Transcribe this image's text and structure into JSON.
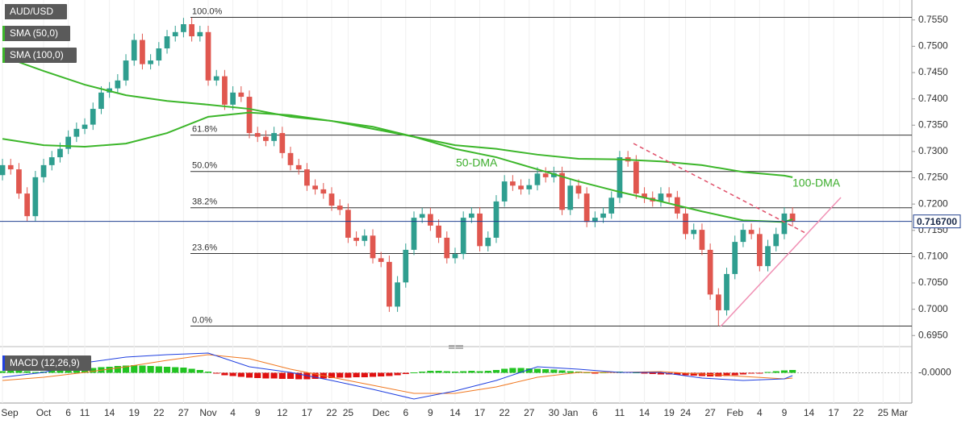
{
  "chart_data": {
    "type": "candlestick",
    "title": "AUD/USD",
    "up_color": "#2f9e8f",
    "down_color": "#e0574f",
    "grid": true,
    "categories": [
      "Sep",
      null,
      null,
      null,
      null,
      "Oct",
      null,
      null,
      "6",
      null,
      "11",
      null,
      null,
      "14",
      null,
      null,
      "19",
      null,
      null,
      "22",
      null,
      null,
      "27",
      null,
      null,
      "Nov",
      null,
      null,
      "4",
      null,
      null,
      "9",
      null,
      null,
      "12",
      null,
      null,
      "17",
      null,
      null,
      "22",
      null,
      "25",
      null,
      null,
      null,
      "Dec",
      null,
      null,
      "6",
      null,
      null,
      "9",
      null,
      null,
      "14",
      null,
      null,
      "17",
      null,
      null,
      "22",
      null,
      null,
      "27",
      null,
      null,
      "30",
      null,
      "Jan",
      null,
      null,
      "6",
      null,
      null,
      "11",
      null,
      null,
      "14",
      null,
      null,
      "19",
      null,
      "24",
      null,
      null,
      "27",
      null,
      null,
      "Feb",
      null,
      null,
      "4",
      null,
      null,
      "9",
      null,
      null,
      "14",
      null,
      null,
      "17",
      null,
      null,
      "22",
      null,
      null,
      "25",
      null,
      "Mar"
    ],
    "open": [
      0.7255,
      0.7274,
      0.7266,
      0.722,
      0.7177,
      0.7251,
      0.7274,
      0.7289,
      0.7305,
      0.7328,
      0.7343,
      0.7351,
      0.7381,
      0.7412,
      0.742,
      0.7435,
      0.7473,
      0.7512,
      0.7466,
      0.7473,
      0.7496,
      0.7519,
      0.7527,
      0.7542,
      0.7519,
      0.7527,
      0.7435,
      0.7443,
      0.7389,
      0.7412,
      0.7404,
      0.7335,
      0.7328,
      0.732,
      0.7335,
      0.7297,
      0.7274,
      0.7266,
      0.7235,
      0.7228,
      0.722,
      0.7197,
      0.7189,
      0.7136,
      0.713,
      0.714,
      0.7097,
      0.709,
      0.7005,
      0.7051,
      0.7113,
      0.7174,
      0.7181,
      0.7159,
      0.7136,
      0.7097,
      0.7105,
      0.7174,
      0.7182,
      0.712,
      0.7136,
      0.7205,
      0.7243,
      0.7235,
      0.7228,
      0.7236,
      0.7258,
      0.7251,
      0.7259,
      0.7189,
      0.7235,
      0.722,
      0.7166,
      0.7174,
      0.7182,
      0.7212,
      0.7289,
      0.7281,
      0.722,
      0.7212,
      0.7205,
      0.722,
      0.7213,
      0.7182,
      0.7143,
      0.7151,
      0.7113,
      0.7028,
      0.6998,
      0.7067,
      0.7128,
      0.7151,
      0.7143,
      0.7082,
      0.712,
      0.7143,
      0.7182,
      null,
      null,
      null,
      null,
      null,
      null,
      null,
      null,
      null,
      null,
      null,
      null,
      null
    ],
    "high": [
      0.7286,
      0.7286,
      0.7278,
      0.7232,
      0.7263,
      0.7286,
      0.7301,
      0.7317,
      0.734,
      0.7355,
      0.7363,
      0.7393,
      0.7424,
      0.7432,
      0.7447,
      0.7485,
      0.7524,
      0.7524,
      0.7485,
      0.7508,
      0.7531,
      0.7539,
      0.7554,
      0.7554,
      0.7539,
      0.7539,
      0.7455,
      0.7455,
      0.7424,
      0.7424,
      0.7416,
      0.7347,
      0.734,
      0.7347,
      0.7347,
      0.7309,
      0.7286,
      0.7278,
      0.7247,
      0.724,
      0.7232,
      0.7209,
      0.7201,
      0.7148,
      0.7152,
      0.7152,
      0.7109,
      0.7102,
      0.7063,
      0.7125,
      0.7186,
      0.7193,
      0.7193,
      0.7171,
      0.7148,
      0.7117,
      0.7186,
      0.7194,
      0.7194,
      0.7148,
      0.7217,
      0.7255,
      0.7255,
      0.7247,
      0.7248,
      0.727,
      0.727,
      0.7271,
      0.7271,
      0.7247,
      0.7247,
      0.7232,
      0.7186,
      0.7194,
      0.7224,
      0.7301,
      0.7301,
      0.7293,
      0.7232,
      0.7224,
      0.7232,
      0.7232,
      0.7225,
      0.7194,
      0.7163,
      0.7163,
      0.7125,
      0.704,
      0.7079,
      0.714,
      0.7163,
      0.7163,
      0.7155,
      0.7132,
      0.7155,
      0.7194,
      0.7194,
      null,
      null,
      null,
      null,
      null,
      null,
      null,
      null,
      null,
      null,
      null,
      null,
      null
    ],
    "low": [
      0.7245,
      0.7256,
      0.721,
      0.7167,
      0.7167,
      0.7241,
      0.7264,
      0.7279,
      0.7295,
      0.7318,
      0.7333,
      0.7341,
      0.7371,
      0.7402,
      0.741,
      0.7425,
      0.7463,
      0.7456,
      0.7456,
      0.7463,
      0.7486,
      0.7509,
      0.7517,
      0.7509,
      0.7509,
      0.7425,
      0.7425,
      0.7379,
      0.7379,
      0.7394,
      0.7325,
      0.7318,
      0.731,
      0.731,
      0.7287,
      0.7264,
      0.7256,
      0.7225,
      0.7218,
      0.721,
      0.7187,
      0.7179,
      0.7126,
      0.712,
      0.712,
      0.7087,
      0.708,
      0.6995,
      0.6995,
      0.7041,
      0.7103,
      0.7164,
      0.7149,
      0.7126,
      0.7087,
      0.7087,
      0.7095,
      0.7164,
      0.711,
      0.711,
      0.7126,
      0.7195,
      0.7225,
      0.7218,
      0.7218,
      0.7226,
      0.7241,
      0.7241,
      0.7179,
      0.7179,
      0.721,
      0.7156,
      0.7156,
      0.7164,
      0.7172,
      0.7202,
      0.7271,
      0.721,
      0.7202,
      0.7195,
      0.7195,
      0.7203,
      0.7172,
      0.7133,
      0.7133,
      0.7103,
      0.7018,
      0.6968,
      0.6988,
      0.7057,
      0.7118,
      0.7133,
      0.7072,
      0.7072,
      0.711,
      0.7133,
      0.7157,
      null,
      null,
      null,
      null,
      null,
      null,
      null,
      null,
      null,
      null,
      null,
      null,
      null
    ],
    "close": [
      0.7274,
      0.7266,
      0.722,
      0.7177,
      0.7251,
      0.7274,
      0.7289,
      0.7305,
      0.7328,
      0.7343,
      0.7351,
      0.7381,
      0.7412,
      0.742,
      0.7435,
      0.7473,
      0.7512,
      0.7466,
      0.7473,
      0.7496,
      0.7519,
      0.7527,
      0.7542,
      0.7519,
      0.7527,
      0.7435,
      0.7443,
      0.7389,
      0.7412,
      0.7404,
      0.7335,
      0.7328,
      0.732,
      0.7335,
      0.7297,
      0.7274,
      0.7266,
      0.7235,
      0.7228,
      0.722,
      0.7197,
      0.7189,
      0.7136,
      0.713,
      0.714,
      0.7097,
      0.709,
      0.7005,
      0.7051,
      0.7113,
      0.7174,
      0.7181,
      0.7159,
      0.7136,
      0.7097,
      0.7105,
      0.7174,
      0.7182,
      0.712,
      0.7136,
      0.7205,
      0.7243,
      0.7235,
      0.7228,
      0.7236,
      0.7258,
      0.7251,
      0.7259,
      0.7189,
      0.7235,
      0.722,
      0.7166,
      0.7174,
      0.7182,
      0.7212,
      0.7289,
      0.7281,
      0.722,
      0.7212,
      0.7205,
      0.722,
      0.7213,
      0.7182,
      0.7143,
      0.7151,
      0.7113,
      0.7028,
      0.6998,
      0.7067,
      0.7128,
      0.7151,
      0.7143,
      0.7082,
      0.712,
      0.7143,
      0.7182,
      0.7167,
      null,
      null,
      null,
      null,
      null,
      null,
      null,
      null,
      null,
      null,
      null,
      null,
      null
    ],
    "xlim": [
      -0.3,
      110.5
    ],
    "ylim": [
      0.6932,
      0.7588
    ],
    "yticks": [
      {
        "value": 0.695,
        "label": "0.6950"
      },
      {
        "value": 0.7,
        "label": "0.7000"
      },
      {
        "value": 0.705,
        "label": "0.7050"
      },
      {
        "value": 0.71,
        "label": "0.7100"
      },
      {
        "value": 0.715,
        "label": "0.7150"
      },
      {
        "value": 0.72,
        "label": "0.7200"
      },
      {
        "value": 0.725,
        "label": "0.7250"
      },
      {
        "value": 0.73,
        "label": "0.7300"
      },
      {
        "value": 0.735,
        "label": "0.7350"
      },
      {
        "value": 0.74,
        "label": "0.7400"
      },
      {
        "value": 0.745,
        "label": "0.7450"
      },
      {
        "value": 0.75,
        "label": "0.7500"
      },
      {
        "value": 0.755,
        "label": "0.7550"
      }
    ],
    "last_price": {
      "value": 0.7167,
      "label": "0.716700",
      "color": "#1f3f8f"
    },
    "sma": [
      {
        "name": "SMA (50,0)",
        "label": "50-DMA",
        "color": "#3cb62a",
        "x": [
          0,
          5,
          10,
          15,
          20,
          25,
          30,
          35,
          40,
          45,
          50,
          55,
          60,
          65,
          70,
          75,
          80,
          85,
          90,
          95,
          96
        ],
        "values": [
          0.7324,
          0.7312,
          0.7309,
          0.7315,
          0.7335,
          0.7366,
          0.7374,
          0.7369,
          0.7358,
          0.7347,
          0.7328,
          0.7305,
          0.7289,
          0.7266,
          0.7243,
          0.7223,
          0.7205,
          0.7186,
          0.7169,
          0.7166,
          0.7171
        ]
      },
      {
        "name": "SMA (100,0)",
        "label": "100-DMA",
        "color": "#3cb62a",
        "x": [
          0,
          5,
          10,
          15,
          20,
          25,
          30,
          35,
          40,
          45,
          50,
          55,
          60,
          65,
          70,
          75,
          80,
          85,
          90,
          95,
          96
        ],
        "values": [
          0.7481,
          0.7453,
          0.7427,
          0.7407,
          0.7396,
          0.7389,
          0.7381,
          0.7366,
          0.7358,
          0.7343,
          0.7328,
          0.7312,
          0.7305,
          0.7294,
          0.7286,
          0.7285,
          0.7281,
          0.7274,
          0.7261,
          0.7254,
          0.7251
        ]
      }
    ],
    "fib": [
      {
        "label": "100.0%",
        "value": 0.7555
      },
      {
        "label": "61.8%",
        "value": 0.7331
      },
      {
        "label": "50.0%",
        "value": 0.7262
      },
      {
        "label": "38.2%",
        "value": 0.7193
      },
      {
        "label": "23.6%",
        "value": 0.7106
      },
      {
        "label": "0.0%",
        "value": 0.6968
      }
    ],
    "macd": {
      "name": "MACD (12,26,9)",
      "y2lim": [
        -0.0075,
        0.0055
      ],
      "y2ticks": [
        {
          "value": 0,
          "label": "-0.0000"
        }
      ],
      "up_color": "#22c422",
      "down_color": "#e01010",
      "histogram": [
        0.0004,
        0.0005,
        0.0006,
        0.0004,
        0.0002,
        0.0003,
        0.0005,
        0.0007,
        0.0009,
        0.001,
        0.0011,
        0.0012,
        0.0014,
        0.0015,
        0.0017,
        0.0018,
        0.0019,
        0.0018,
        0.0017,
        0.0016,
        0.0015,
        0.0014,
        0.0013,
        0.001,
        0.0007,
        0.0003,
        -0.0002,
        -0.0006,
        -0.0008,
        -0.001,
        -0.0012,
        -0.0013,
        -0.0014,
        -0.0014,
        -0.0015,
        -0.0015,
        -0.0016,
        -0.0016,
        -0.0015,
        -0.0014,
        -0.0013,
        -0.0012,
        -0.0012,
        -0.0011,
        -0.0011,
        -0.001,
        -0.0009,
        -0.0008,
        -0.0006,
        -0.0003,
        0.0001,
        0.0003,
        0.0005,
        0.0005,
        0.0004,
        0.0003,
        0.0004,
        0.0005,
        0.0004,
        0.0005,
        0.0007,
        0.001,
        0.0012,
        0.0012,
        0.0011,
        0.001,
        0.0009,
        0.0008,
        0.0006,
        0.0004,
        0.0003,
        0.0001,
        -0.0001,
        0.0001,
        0.0002,
        0.0003,
        0.0002,
        0.0001,
        -0.0002,
        -0.0003,
        -0.0004,
        -0.0004,
        -0.0005,
        -0.0006,
        -0.0007,
        -0.0008,
        -0.0009,
        -0.0009,
        -0.0008,
        -0.0006,
        -0.0004,
        -0.0002,
        -0.0001,
        0.0002,
        0.0004,
        0.0006,
        0.0007,
        null,
        null,
        null,
        null,
        null,
        null,
        null,
        null,
        null,
        null,
        null,
        null,
        null
      ],
      "macd": {
        "color": "#2040e0",
        "x": [
          0,
          5,
          10,
          15,
          20,
          25,
          30,
          35,
          40,
          45,
          50,
          55,
          60,
          65,
          70,
          75,
          80,
          85,
          90,
          95,
          96
        ],
        "values": [
          -0.0011,
          0.0001,
          0.0025,
          0.0039,
          0.0045,
          0.0049,
          0.0015,
          0.0001,
          -0.0019,
          -0.0041,
          -0.0065,
          -0.0045,
          -0.0019,
          0.0015,
          0.0009,
          0.0001,
          0.0001,
          -0.0013,
          -0.0019,
          -0.0015,
          -0.0007
        ]
      },
      "signal": {
        "color": "#f07820",
        "x": [
          0,
          5,
          10,
          15,
          20,
          25,
          30,
          35,
          40,
          45,
          50,
          55,
          60,
          65,
          70,
          75,
          80,
          85,
          90,
          95,
          96
        ],
        "values": [
          -0.0019,
          -0.0011,
          0.0001,
          0.0015,
          0.0031,
          0.0045,
          0.0035,
          0.0009,
          -0.0011,
          -0.0031,
          -0.0051,
          -0.0051,
          -0.0035,
          -0.0011,
          0.0001,
          0.0001,
          0.0003,
          -0.0003,
          -0.0009,
          -0.0015,
          -0.0013
        ]
      }
    }
  }
}
